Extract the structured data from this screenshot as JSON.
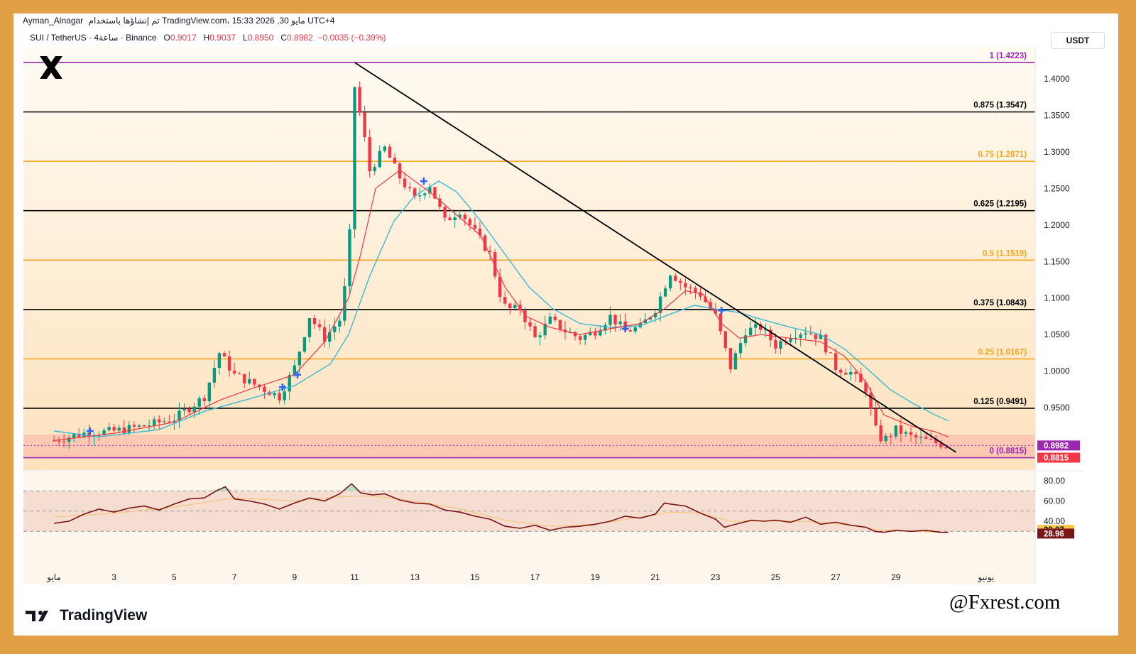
{
  "header": {
    "author": "Ayman_Alnagar",
    "published": "تم إنشاؤها باستخدام TradingView.com، 15:33 2026 ,30 مايو UTC+4"
  },
  "symbol": {
    "name": "SUI / TetherUS · 4ساعة · Binance",
    "o_label": "O",
    "o_value": "0.9017",
    "h_label": "H",
    "h_value": "0.9037",
    "l_label": "L",
    "l_value": "0.8950",
    "c_label": "C",
    "c_value": "0.8982",
    "change": "−0.0035 (−0.39%)"
  },
  "quote_currency": "USDT",
  "footer": {
    "brand": "TradingView",
    "handle": "@Fxrest.com"
  },
  "colors": {
    "frame": "#e1a043",
    "up": "#089981",
    "down": "#f23645",
    "ma_fast": "#f23645",
    "ma_slow": "#3bb8d4",
    "rsi": "#7b1416",
    "fib_black": "#000000",
    "fib_orange": "#f5a623",
    "fib_purple": "#9c27b0"
  },
  "chart_data": {
    "type": "candlestick",
    "symbol": "SUI/USDT",
    "timeframe": "4h",
    "ylim": [
      0.872,
      1.432
    ],
    "yticks": [
      "1.4000",
      "1.3500",
      "1.3000",
      "1.2500",
      "1.2000",
      "1.1500",
      "1.1000",
      "1.0500",
      "1.0000",
      "0.9500"
    ],
    "xticks": [
      "مايو",
      "3",
      "5",
      "7",
      "9",
      "11",
      "13",
      "15",
      "17",
      "19",
      "21",
      "23",
      "25",
      "27",
      "29",
      "يونيو"
    ],
    "price_labels": {
      "last": "0.8982",
      "support": "0.8815"
    },
    "fib_levels": [
      {
        "ratio": "1",
        "price": 1.4223,
        "label": "1 (1.4223)"
      },
      {
        "ratio": "0.875",
        "price": 1.3547,
        "label": "0.875 (1.3547)"
      },
      {
        "ratio": "0.75",
        "price": 1.2871,
        "label": "0.75 (1.2871)"
      },
      {
        "ratio": "0.625",
        "price": 1.2195,
        "label": "0.625 (1.2195)"
      },
      {
        "ratio": "0.5",
        "price": 1.1519,
        "label": "0.5 (1.1519)"
      },
      {
        "ratio": "0.375",
        "price": 1.0843,
        "label": "0.375 (1.0843)"
      },
      {
        "ratio": "0.25",
        "price": 1.0167,
        "label": "0.25 (1.0167)"
      },
      {
        "ratio": "0.125",
        "price": 0.9491,
        "label": "0.125 (0.9491)"
      },
      {
        "ratio": "0",
        "price": 0.8815,
        "label": "0 (0.8815)"
      }
    ],
    "trendline": [
      [
        11.0,
        1.4223
      ],
      [
        31.0,
        0.889
      ]
    ],
    "close_path": [
      [
        1,
        0.905
      ],
      [
        2,
        0.915
      ],
      [
        3,
        0.918
      ],
      [
        4,
        0.925
      ],
      [
        5,
        0.935
      ],
      [
        6,
        0.965
      ],
      [
        6.5,
        1.025
      ],
      [
        7,
        0.995
      ],
      [
        7.5,
        0.985
      ],
      [
        8,
        0.975
      ],
      [
        8.5,
        0.965
      ],
      [
        9,
        1.005
      ],
      [
        9.5,
        1.075
      ],
      [
        10,
        1.045
      ],
      [
        10.5,
        1.07
      ],
      [
        10.8,
        1.14
      ],
      [
        11,
        1.39
      ],
      [
        11.2,
        1.345
      ],
      [
        11.5,
        1.275
      ],
      [
        12,
        1.305
      ],
      [
        12.5,
        1.265
      ],
      [
        13,
        1.235
      ],
      [
        13.5,
        1.255
      ],
      [
        14,
        1.205
      ],
      [
        14.5,
        1.22
      ],
      [
        15,
        1.19
      ],
      [
        15.5,
        1.16
      ],
      [
        16,
        1.085
      ],
      [
        16.5,
        1.085
      ],
      [
        17,
        1.045
      ],
      [
        17.5,
        1.07
      ],
      [
        18,
        1.055
      ],
      [
        18.5,
        1.045
      ],
      [
        19,
        1.055
      ],
      [
        19.5,
        1.075
      ],
      [
        20,
        1.055
      ],
      [
        20.5,
        1.06
      ],
      [
        21,
        1.085
      ],
      [
        21.5,
        1.135
      ],
      [
        22,
        1.115
      ],
      [
        22.5,
        1.105
      ],
      [
        23,
        1.075
      ],
      [
        23.5,
        1.005
      ],
      [
        24,
        1.055
      ],
      [
        24.5,
        1.06
      ],
      [
        25,
        1.035
      ],
      [
        25.5,
        1.05
      ],
      [
        26,
        1.055
      ],
      [
        26.5,
        1.045
      ],
      [
        27,
        1.005
      ],
      [
        27.5,
        0.998
      ],
      [
        28,
        0.975
      ],
      [
        28.3,
        0.915
      ],
      [
        28.6,
        0.905
      ],
      [
        29,
        0.92
      ],
      [
        29.5,
        0.91
      ],
      [
        30,
        0.905
      ],
      [
        30.5,
        0.9
      ],
      [
        30.75,
        0.8982
      ]
    ],
    "ma_fast_path": [
      [
        1,
        0.905
      ],
      [
        3,
        0.915
      ],
      [
        5,
        0.93
      ],
      [
        6.5,
        0.96
      ],
      [
        7.5,
        0.975
      ],
      [
        9,
        0.995
      ],
      [
        10,
        1.04
      ],
      [
        10.8,
        1.1
      ],
      [
        11.2,
        1.16
      ],
      [
        11.7,
        1.25
      ],
      [
        12.5,
        1.275
      ],
      [
        13.5,
        1.245
      ],
      [
        14.5,
        1.21
      ],
      [
        15.2,
        1.185
      ],
      [
        16,
        1.115
      ],
      [
        16.7,
        1.075
      ],
      [
        17.5,
        1.06
      ],
      [
        18.5,
        1.05
      ],
      [
        19.5,
        1.058
      ],
      [
        20.5,
        1.065
      ],
      [
        21.3,
        1.085
      ],
      [
        22,
        1.11
      ],
      [
        22.6,
        1.105
      ],
      [
        23.2,
        1.065
      ],
      [
        23.8,
        1.045
      ],
      [
        24.5,
        1.05
      ],
      [
        25.5,
        1.045
      ],
      [
        26.5,
        1.04
      ],
      [
        27.3,
        1.02
      ],
      [
        28,
        0.985
      ],
      [
        28.6,
        0.94
      ],
      [
        29.5,
        0.925
      ],
      [
        30.3,
        0.917
      ],
      [
        30.75,
        0.91
      ]
    ],
    "ma_slow_path": [
      [
        1,
        0.918
      ],
      [
        2.5,
        0.91
      ],
      [
        4.5,
        0.92
      ],
      [
        6,
        0.945
      ],
      [
        7.5,
        0.962
      ],
      [
        9,
        0.98
      ],
      [
        10.2,
        1.01
      ],
      [
        10.8,
        1.05
      ],
      [
        11.5,
        1.13
      ],
      [
        12.3,
        1.205
      ],
      [
        13,
        1.24
      ],
      [
        13.8,
        1.26
      ],
      [
        14.4,
        1.245
      ],
      [
        15.2,
        1.205
      ],
      [
        16,
        1.16
      ],
      [
        16.8,
        1.115
      ],
      [
        17.6,
        1.085
      ],
      [
        18.5,
        1.065
      ],
      [
        19.5,
        1.06
      ],
      [
        20.5,
        1.062
      ],
      [
        21.5,
        1.078
      ],
      [
        22.3,
        1.09
      ],
      [
        23,
        1.085
      ],
      [
        23.8,
        1.08
      ],
      [
        24.6,
        1.07
      ],
      [
        25.5,
        1.06
      ],
      [
        26.5,
        1.05
      ],
      [
        27.3,
        1.03
      ],
      [
        28,
        1.005
      ],
      [
        28.8,
        0.975
      ],
      [
        29.6,
        0.955
      ],
      [
        30.3,
        0.94
      ],
      [
        30.75,
        0.932
      ]
    ],
    "rsi": {
      "ticks": [
        "80.00",
        "60.00",
        "40.00"
      ],
      "overbought": 70,
      "oversold": 30,
      "mid": 50,
      "last_rsi": "28.96",
      "last_ma": "29.07",
      "values": [
        [
          1,
          38
        ],
        [
          1.5,
          40
        ],
        [
          2,
          47
        ],
        [
          2.5,
          52
        ],
        [
          3,
          49
        ],
        [
          3.5,
          53
        ],
        [
          4,
          55
        ],
        [
          4.5,
          51
        ],
        [
          5,
          57
        ],
        [
          5.5,
          62
        ],
        [
          6,
          63
        ],
        [
          6.4,
          70
        ],
        [
          6.7,
          74
        ],
        [
          7,
          62
        ],
        [
          7.5,
          60
        ],
        [
          8,
          57
        ],
        [
          8.5,
          52
        ],
        [
          9,
          58
        ],
        [
          9.5,
          63
        ],
        [
          10,
          60
        ],
        [
          10.5,
          67
        ],
        [
          10.9,
          77
        ],
        [
          11.2,
          68
        ],
        [
          11.6,
          66
        ],
        [
          12,
          67
        ],
        [
          12.5,
          61
        ],
        [
          13,
          58
        ],
        [
          13.5,
          57
        ],
        [
          14,
          51
        ],
        [
          14.5,
          49
        ],
        [
          15,
          45
        ],
        [
          15.5,
          42
        ],
        [
          16,
          35
        ],
        [
          16.5,
          33
        ],
        [
          17,
          36
        ],
        [
          17.5,
          31
        ],
        [
          18,
          34
        ],
        [
          18.5,
          35
        ],
        [
          19,
          37
        ],
        [
          19.5,
          40
        ],
        [
          20,
          45
        ],
        [
          20.5,
          43
        ],
        [
          21,
          47
        ],
        [
          21.3,
          58
        ],
        [
          21.5,
          57
        ],
        [
          22,
          55
        ],
        [
          22.5,
          48
        ],
        [
          23,
          42
        ],
        [
          23.3,
          34
        ],
        [
          23.8,
          38
        ],
        [
          24.2,
          41
        ],
        [
          24.6,
          40
        ],
        [
          25,
          41
        ],
        [
          25.5,
          39
        ],
        [
          26,
          44
        ],
        [
          26.5,
          37
        ],
        [
          27,
          39
        ],
        [
          27.5,
          36
        ],
        [
          28,
          34
        ],
        [
          28.3,
          30
        ],
        [
          28.6,
          29
        ],
        [
          29,
          31
        ],
        [
          29.5,
          30
        ],
        [
          30,
          31
        ],
        [
          30.5,
          29
        ],
        [
          30.75,
          29
        ]
      ],
      "ma_values": [
        [
          1,
          44
        ],
        [
          3,
          48
        ],
        [
          5,
          54
        ],
        [
          7,
          63
        ],
        [
          9,
          60
        ],
        [
          10.5,
          64
        ],
        [
          11.5,
          65
        ],
        [
          13,
          60
        ],
        [
          14.5,
          52
        ],
        [
          16,
          41
        ],
        [
          17.5,
          35
        ],
        [
          19,
          37
        ],
        [
          20.5,
          44
        ],
        [
          21.5,
          49
        ],
        [
          22.5,
          48
        ],
        [
          23.5,
          40
        ],
        [
          24.5,
          40
        ],
        [
          25.5,
          40
        ],
        [
          26.5,
          39
        ],
        [
          27.5,
          36
        ],
        [
          28.5,
          31
        ],
        [
          29.5,
          30
        ],
        [
          30.75,
          29
        ]
      ]
    }
  }
}
